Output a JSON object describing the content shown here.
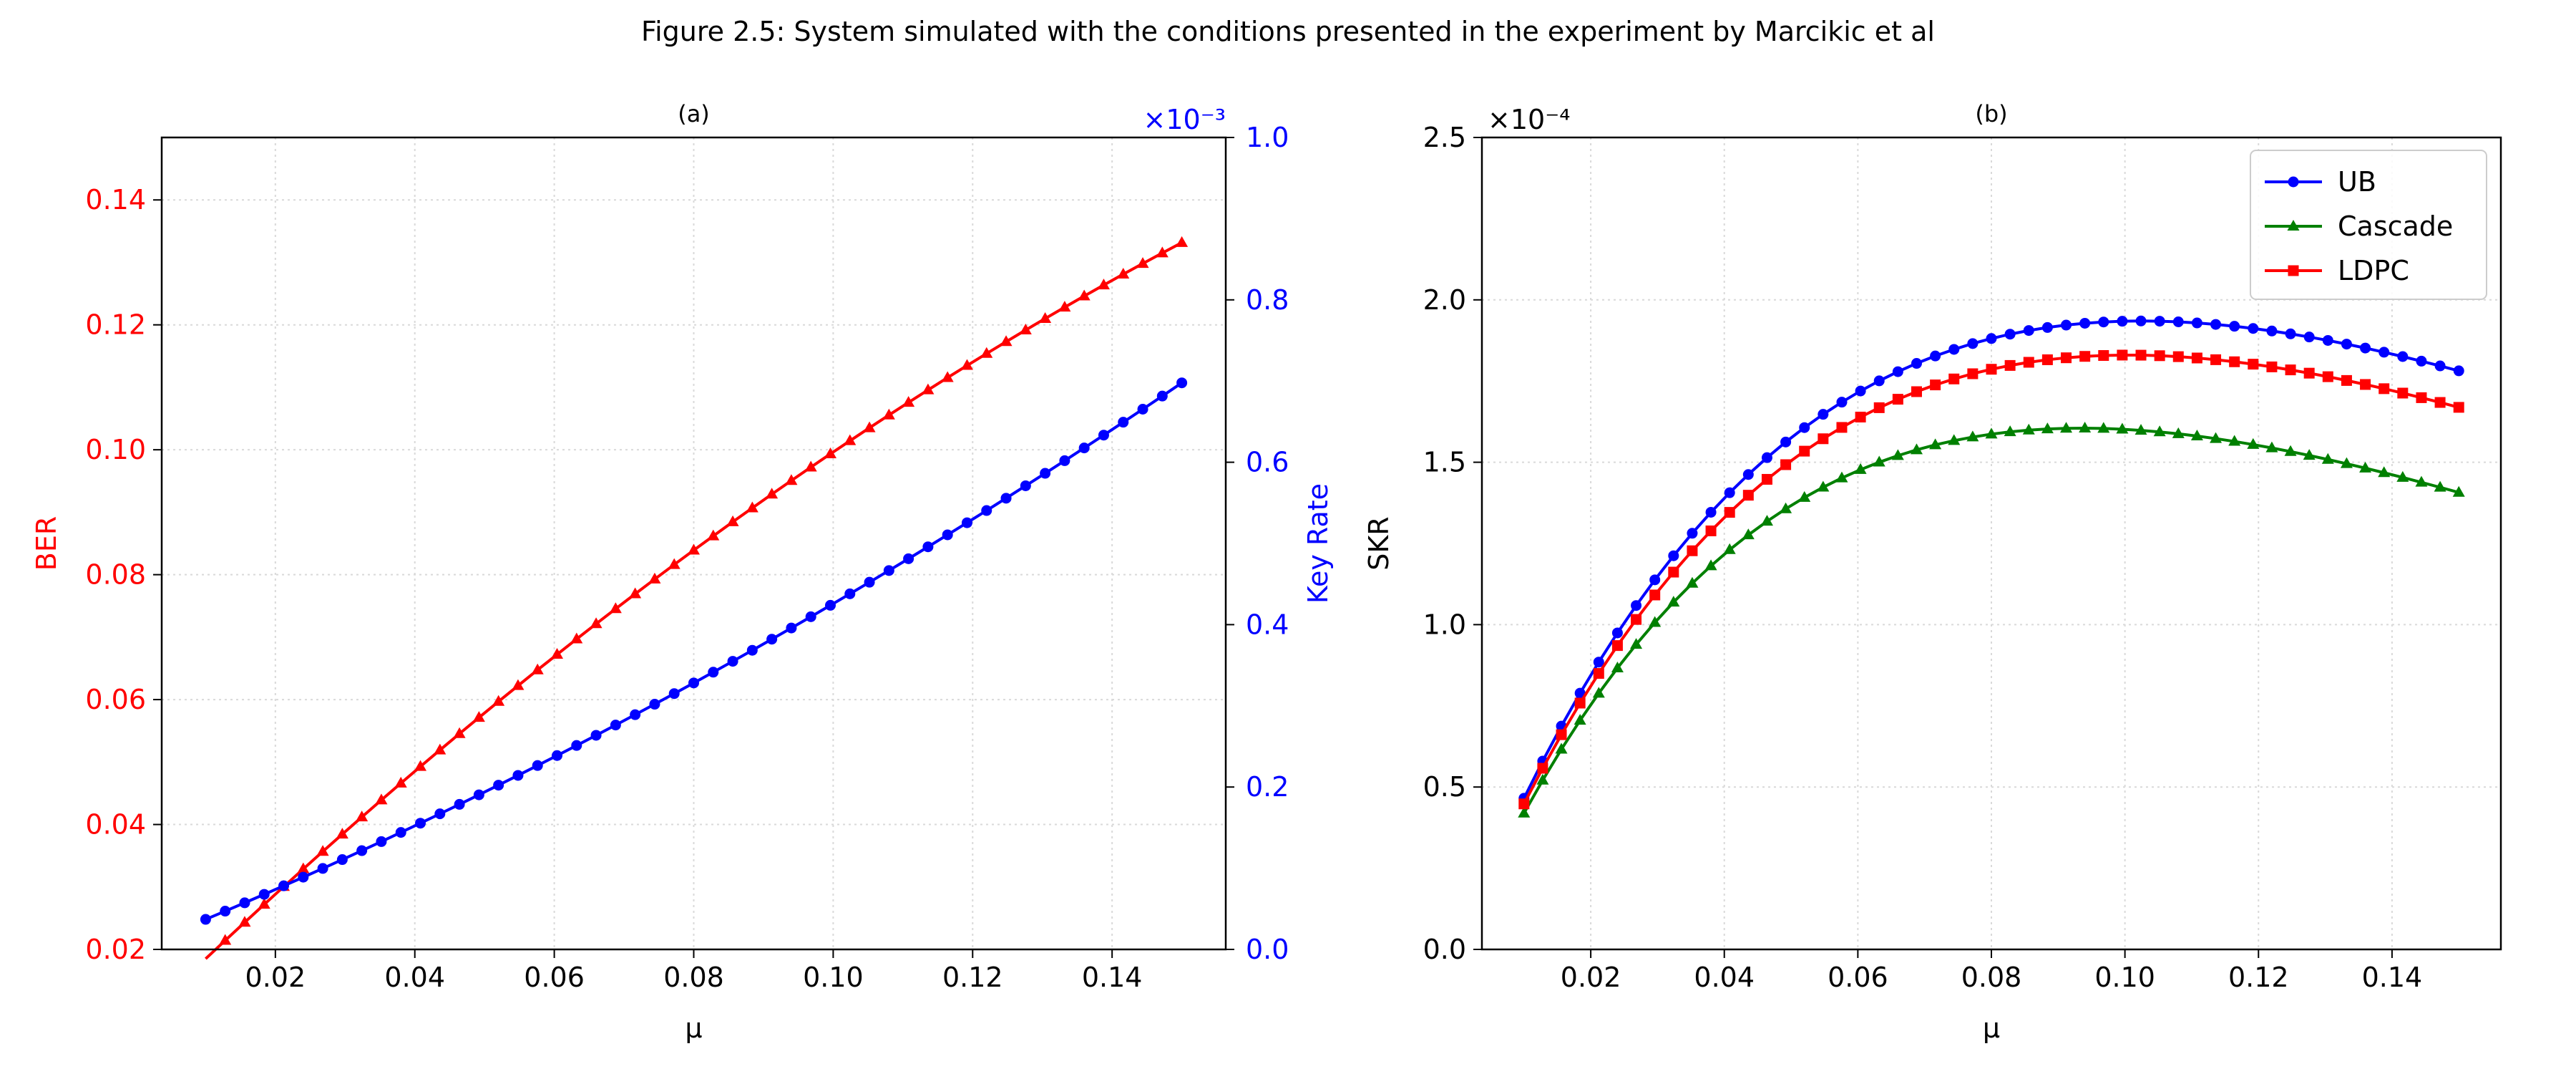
{
  "figure_title": "Figure 2.5: System simulated with the conditions presented in the experiment by Marcikic et al",
  "colors": {
    "red": "#ff0000",
    "blue": "#0000ff",
    "green": "#008000",
    "grid": "#d9d9d9"
  },
  "chart_data": [
    {
      "type": "line",
      "subtitle": "(a)",
      "xlabel": "μ",
      "xlim": [
        0.0037,
        0.1563
      ],
      "xticks": [
        "0.02",
        "0.04",
        "0.06",
        "0.08",
        "0.10",
        "0.12",
        "0.14"
      ],
      "x_start": 0.01,
      "x_end": 0.15,
      "n_points": 51,
      "grid": true,
      "left_axis": {
        "label": "BER",
        "color": "#ff0000",
        "ylim": [
          0.02,
          0.15
        ],
        "ticks": [
          "0.02",
          "0.04",
          "0.06",
          "0.08",
          "0.10",
          "0.12",
          "0.14"
        ]
      },
      "right_axis": {
        "label": "Key Rate",
        "color": "#0000ff",
        "ylim": [
          0.0,
          1.0
        ],
        "ticks": [
          "0.0",
          "0.2",
          "0.4",
          "0.6",
          "0.8",
          "1.0"
        ],
        "multiplier": "×10⁻³"
      },
      "series": [
        {
          "axis": "left",
          "color": "#ff0000",
          "marker": "triangle",
          "model": "ber",
          "params": {
            "a": 0.0001,
            "b": 0.28,
            "c": 0.42
          }
        },
        {
          "axis": "right",
          "color": "#0000ff",
          "marker": "circle",
          "model": "linear_quad",
          "params": {
            "y0": 0.045,
            "slope": 4.1,
            "quad": 4.55
          }
        }
      ]
    },
    {
      "type": "line",
      "subtitle": "(b)",
      "xlabel": "μ",
      "ylabel": "SKR",
      "xlim": [
        0.0037,
        0.1563
      ],
      "xticks": [
        "0.02",
        "0.04",
        "0.06",
        "0.08",
        "0.10",
        "0.12",
        "0.14"
      ],
      "ylim": [
        0.0,
        2.5
      ],
      "yticks": [
        "0.0",
        "0.5",
        "1.0",
        "1.5",
        "2.0",
        "2.5"
      ],
      "multiplier": "×10⁻⁴",
      "x_start": 0.01,
      "x_end": 0.15,
      "n_points": 51,
      "grid": true,
      "legend": "top-right",
      "series": [
        {
          "name": "UB",
          "color": "#0000ff",
          "marker": "circle",
          "model": "hump",
          "params": {
            "k": 5.25,
            "peak": 1.935,
            "xpeak": 0.1025
          }
        },
        {
          "name": "Cascade",
          "color": "#008000",
          "marker": "triangle",
          "model": "hump",
          "params": {
            "k": 4.7,
            "peak": 1.605,
            "xpeak": 0.0935
          }
        },
        {
          "name": "LDPC",
          "color": "#ff0000",
          "marker": "square",
          "model": "hump",
          "params": {
            "k": 5.1,
            "peak": 1.83,
            "xpeak": 0.1005
          }
        }
      ]
    }
  ]
}
